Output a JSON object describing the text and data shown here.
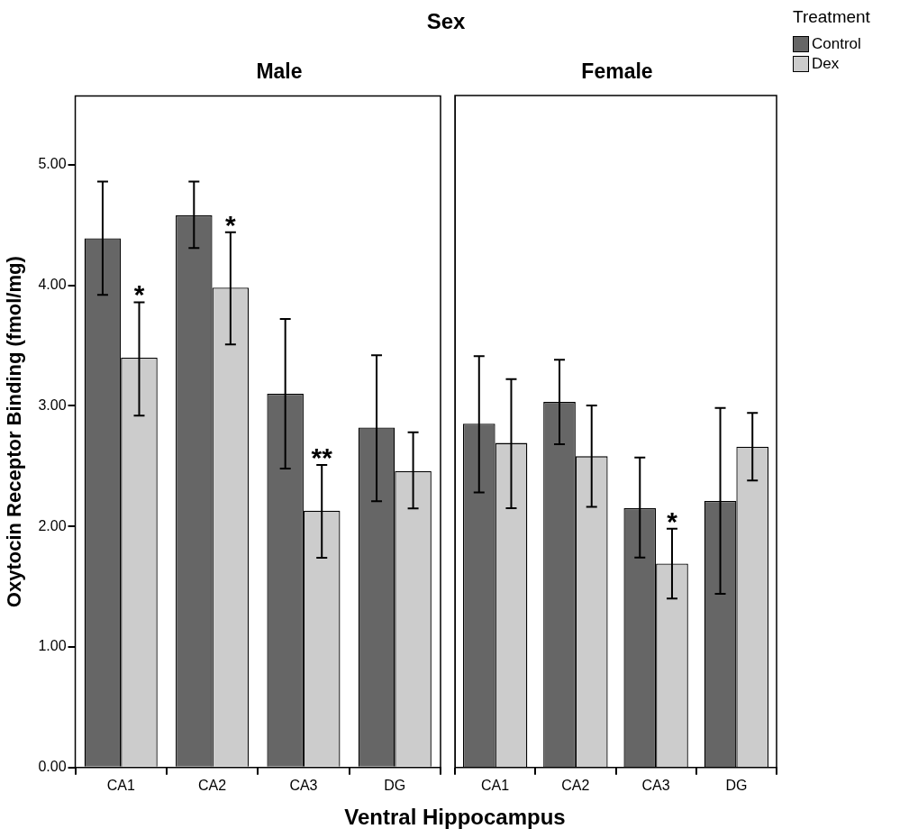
{
  "chart_data": [
    {
      "type": "bar",
      "title": "Sex",
      "subtitle": "Male",
      "xlabel": "Ventral Hippocampus",
      "ylabel": "Oxytocin Receptor Binding (fmol/mg)",
      "legend": "top right",
      "legend_title": "Treatment",
      "categories": [
        "CA1",
        "CA2",
        "CA3",
        "DG"
      ],
      "series": [
        {
          "name": "Control",
          "color": "#666666",
          "values": [
            4.39,
            4.58,
            3.1,
            2.82
          ],
          "errors": [
            [
              3.92,
              4.86
            ],
            [
              4.31,
              4.86
            ],
            [
              2.48,
              3.72
            ],
            [
              2.21,
              3.42
            ]
          ]
        },
        {
          "name": "Dex",
          "color": "#cccccc",
          "values": [
            3.4,
            3.98,
            2.13,
            2.46
          ],
          "errors": [
            [
              2.92,
              3.86
            ],
            [
              3.51,
              4.44
            ],
            [
              1.74,
              2.51
            ],
            [
              2.15,
              2.78
            ]
          ]
        }
      ],
      "ylim": [
        0,
        5.57
      ],
      "yticks": [
        {
          "value": 0,
          "label": "0.00"
        },
        {
          "value": 1,
          "label": "1.00"
        },
        {
          "value": 2,
          "label": "2.00"
        },
        {
          "value": 3,
          "label": "3.00"
        },
        {
          "value": 4,
          "label": "4.00"
        },
        {
          "value": 5,
          "label": "5.00"
        }
      ],
      "annotations": [
        {
          "text": "*",
          "x": "CA1",
          "y": 3.86
        },
        {
          "text": "*",
          "x": "CA2",
          "y": 4.44
        },
        {
          "text": "**",
          "x": "CA3",
          "y": 2.51
        }
      ]
    },
    {
      "type": "bar",
      "subtitle": "Female",
      "categories": [
        "CA1",
        "CA2",
        "CA3",
        "DG"
      ],
      "series": [
        {
          "color": "#666666",
          "values": [
            2.85,
            3.03,
            2.15,
            2.21
          ],
          "errors": [
            [
              2.28,
              3.41
            ],
            [
              2.68,
              3.38
            ],
            [
              1.74,
              2.57
            ],
            [
              1.44,
              2.98
            ]
          ]
        },
        {
          "color": "#cccccc",
          "values": [
            2.69,
            2.58,
            1.69,
            2.66
          ],
          "errors": [
            [
              2.15,
              3.22
            ],
            [
              2.16,
              3.0
            ],
            [
              1.4,
              1.98
            ],
            [
              2.38,
              2.94
            ]
          ]
        }
      ],
      "ylim": [
        0,
        5.57
      ],
      "tick_labels": "x",
      "annotations": [
        {
          "text": "*",
          "x": "CA3",
          "y": 1.98
        }
      ]
    }
  ]
}
